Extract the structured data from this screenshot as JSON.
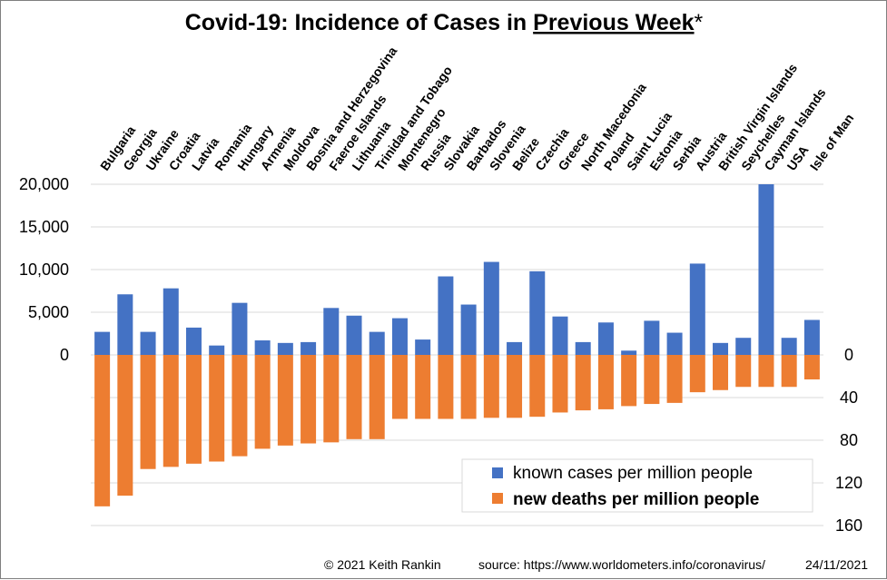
{
  "chart_data": {
    "type": "bar",
    "title": "Covid-19: Incidence of Cases in Previous Week*",
    "title_parts": {
      "prefix": "Covid-19: Incidence of Cases in ",
      "underlined": "Previous Week",
      "suffix": "*"
    },
    "categories": [
      "Bulgaria",
      "Georgia",
      "Ukraine",
      "Croatia",
      "Latvia",
      "Romania",
      "Hungary",
      "Armenia",
      "Moldova",
      "Bosnia and Herzegovina",
      "Faeroe Islands",
      "Lithuania",
      "Trinidad and Tobago",
      "Montenegro",
      "Russia",
      "Slovakia",
      "Barbados",
      "Slovenia",
      "Belize",
      "Czechia",
      "Greece",
      "North Macedonia",
      "Poland",
      "Saint Lucia",
      "Estonia",
      "Serbia",
      "Austria",
      "British Virgin Islands",
      "Seychelles",
      "Cayman Islands",
      "USA",
      "Isle of Man"
    ],
    "series": [
      {
        "name": "known cases per million people",
        "color": "#4472C4",
        "axis": "left",
        "values": [
          2700,
          7100,
          2700,
          7800,
          3200,
          1100,
          6100,
          1700,
          1400,
          1500,
          5500,
          4600,
          2700,
          4300,
          1800,
          9200,
          5900,
          10900,
          1500,
          9800,
          4500,
          1500,
          3800,
          500,
          4000,
          2600,
          10700,
          1400,
          2000,
          20000,
          2000,
          4100
        ]
      },
      {
        "name": "new deaths per million people",
        "color": "#ED7D31",
        "axis": "right",
        "values": [
          142,
          132,
          107,
          105,
          102,
          100,
          95,
          88,
          85,
          83,
          82,
          79,
          79,
          60,
          60,
          60,
          60,
          59,
          59,
          58,
          54,
          52,
          51,
          48,
          46,
          45,
          35,
          33,
          30,
          30,
          30,
          23
        ]
      }
    ],
    "y_left": {
      "ticks": [
        "20,000",
        "15,000",
        "10,000",
        "5,000",
        "0"
      ],
      "range": [
        0,
        20000
      ]
    },
    "y_right": {
      "ticks": [
        "0",
        "40",
        "80",
        "120",
        "160"
      ],
      "range": [
        0,
        160
      ],
      "inverted": true
    },
    "grid": true,
    "legend_position": "bottom-right"
  },
  "footer": {
    "credit": "© 2021   Keith Rankin",
    "source": "source:  https://www.worldometers.info/coronavirus/",
    "date": "24/11/2021"
  }
}
